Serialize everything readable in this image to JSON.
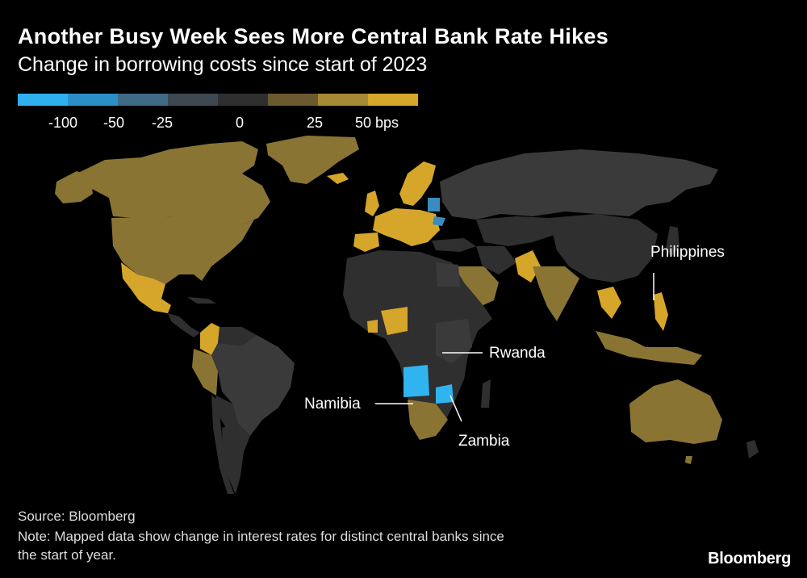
{
  "title": "Another Busy Week Sees More Central Bank Rate Hikes",
  "subtitle": "Change in borrowing costs since start of 2023",
  "legend": {
    "colors": [
      "#2eb0ef",
      "#2b8fc7",
      "#3f6a85",
      "#3d4850",
      "#2f2f2f",
      "#6b5a30",
      "#a78a36",
      "#d7a72c"
    ],
    "labels": [
      "-100",
      "-50",
      "-25",
      "0",
      "25",
      "50 bps"
    ]
  },
  "colors": {
    "background": "#000000",
    "neutral": "#2f2f2f",
    "hike_small": "#8a7434",
    "hike_large": "#d6a62a",
    "cut": "#2fb4f0",
    "cut_mid": "#3a8cc0"
  },
  "annotations": {
    "philippines": "Philippines",
    "rwanda": "Rwanda",
    "namibia": "Namibia",
    "zambia": "Zambia"
  },
  "source": "Source: Bloomberg",
  "note_line1": "Note: Mapped data show change in interest rates for distinct central banks since",
  "note_line2": "the start of year.",
  "logo": "Bloomberg"
}
